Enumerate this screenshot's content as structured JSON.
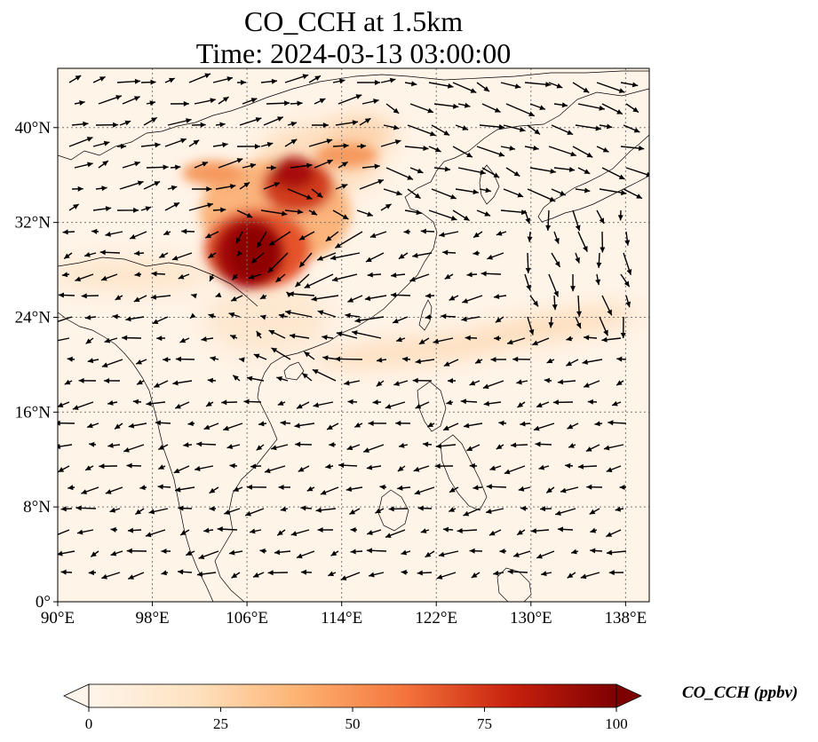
{
  "title": {
    "line1": "CO_CCH at 1.5km",
    "line2": "Time: 2024-03-13 03:00:00"
  },
  "map": {
    "lon_range": [
      90,
      140
    ],
    "lat_range": [
      0,
      45
    ],
    "lon_ticks": [
      {
        "value": 90,
        "label": "90°E"
      },
      {
        "value": 98,
        "label": "98°E"
      },
      {
        "value": 106,
        "label": "106°E"
      },
      {
        "value": 114,
        "label": "114°E"
      },
      {
        "value": 122,
        "label": "122°E"
      },
      {
        "value": 130,
        "label": "130°E"
      },
      {
        "value": 138,
        "label": "138°E"
      }
    ],
    "lat_ticks": [
      {
        "value": 0,
        "label": "0°"
      },
      {
        "value": 8,
        "label": "8°N"
      },
      {
        "value": 16,
        "label": "16°N"
      },
      {
        "value": 24,
        "label": "24°N"
      },
      {
        "value": 32,
        "label": "32°N"
      },
      {
        "value": 40,
        "label": "40°N"
      }
    ],
    "gridlines": true
  },
  "colorbar": {
    "label": "CO_CCH (ppbv)",
    "min": 0,
    "max": 100,
    "extend": "both",
    "ticks": [
      {
        "value": 0,
        "label": "0"
      },
      {
        "value": 25,
        "label": "25"
      },
      {
        "value": 50,
        "label": "50"
      },
      {
        "value": 75,
        "label": "75"
      },
      {
        "value": 100,
        "label": "100"
      }
    ],
    "colors": [
      "#fff5eb",
      "#fdd9a6",
      "#fd9a55",
      "#e8552a",
      "#b31009",
      "#7f0000"
    ]
  }
}
